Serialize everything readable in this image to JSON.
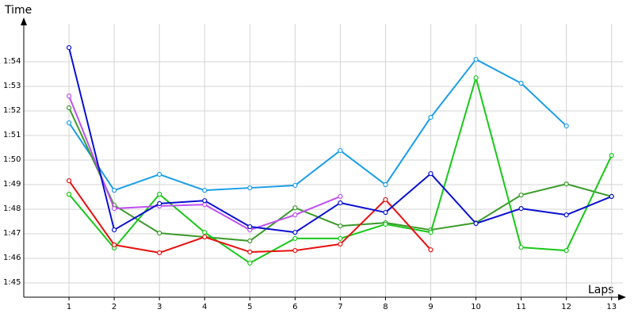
{
  "chart_data": {
    "type": "line",
    "y_label": "Time",
    "x_label": "Laps",
    "x": [
      1,
      2,
      3,
      4,
      5,
      6,
      7,
      8,
      9,
      10,
      11,
      12,
      13
    ],
    "xlim": [
      0,
      13.25
    ],
    "xticks": [
      1,
      2,
      3,
      4,
      5,
      6,
      7,
      8,
      9,
      10,
      11,
      12,
      13
    ],
    "ylim": [
      104.42,
      115.55
    ],
    "yticks": [
      {
        "value": 105,
        "label": "1:45"
      },
      {
        "value": 106,
        "label": "1:46"
      },
      {
        "value": 107,
        "label": "1:47"
      },
      {
        "value": 108,
        "label": "1:48"
      },
      {
        "value": 109,
        "label": "1:49"
      },
      {
        "value": 110,
        "label": "1:50"
      },
      {
        "value": 111,
        "label": "1:51"
      },
      {
        "value": 112,
        "label": "1:52"
      },
      {
        "value": 113,
        "label": "1:53"
      },
      {
        "value": 114,
        "label": "1:54"
      }
    ],
    "grid": true,
    "series": [
      {
        "color": "#1a9ee8",
        "values": [
          111.52,
          108.77,
          109.42,
          108.77,
          108.87,
          108.97,
          110.39,
          109.0,
          111.74,
          114.1,
          113.13,
          111.39,
          null
        ]
      },
      {
        "color": "#3a9a2a",
        "values": [
          112.13,
          108.16,
          107.03,
          106.87,
          106.71,
          108.06,
          107.32,
          107.45,
          107.16,
          107.45,
          108.58,
          109.03,
          108.52
        ]
      },
      {
        "color": "#18c818",
        "values": [
          108.61,
          106.42,
          108.61,
          107.06,
          105.81,
          106.81,
          106.81,
          107.39,
          107.06,
          113.35,
          106.45,
          106.32,
          110.19
        ]
      },
      {
        "color": "#e81010",
        "values": [
          109.16,
          106.55,
          106.23,
          106.87,
          106.26,
          106.32,
          106.58,
          108.39,
          106.35,
          null,
          null,
          null,
          null
        ]
      },
      {
        "color": "#c050f0",
        "values": [
          112.61,
          108.03,
          108.13,
          108.19,
          107.16,
          107.77,
          108.52,
          null,
          null,
          null,
          null,
          null,
          null
        ]
      },
      {
        "color": "#0a10d0",
        "values": [
          114.58,
          107.16,
          108.23,
          108.35,
          107.29,
          107.06,
          108.26,
          107.87,
          109.45,
          107.42,
          108.03,
          107.77,
          108.52
        ]
      }
    ]
  }
}
